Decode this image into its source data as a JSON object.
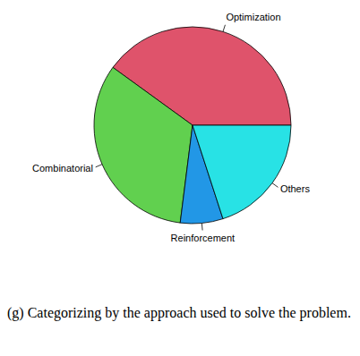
{
  "chart_data": {
    "type": "pie",
    "caption": "(g) Categorizing by the approach used to solve the problem.",
    "categories": [
      "Optimization",
      "Combinatorial",
      "Reinforcement",
      "Others"
    ],
    "values": [
      40,
      33,
      7,
      20
    ],
    "colors": [
      "#DF536B",
      "#61D04F",
      "#2297E6",
      "#28E2E5"
    ],
    "data_labels": false
  }
}
